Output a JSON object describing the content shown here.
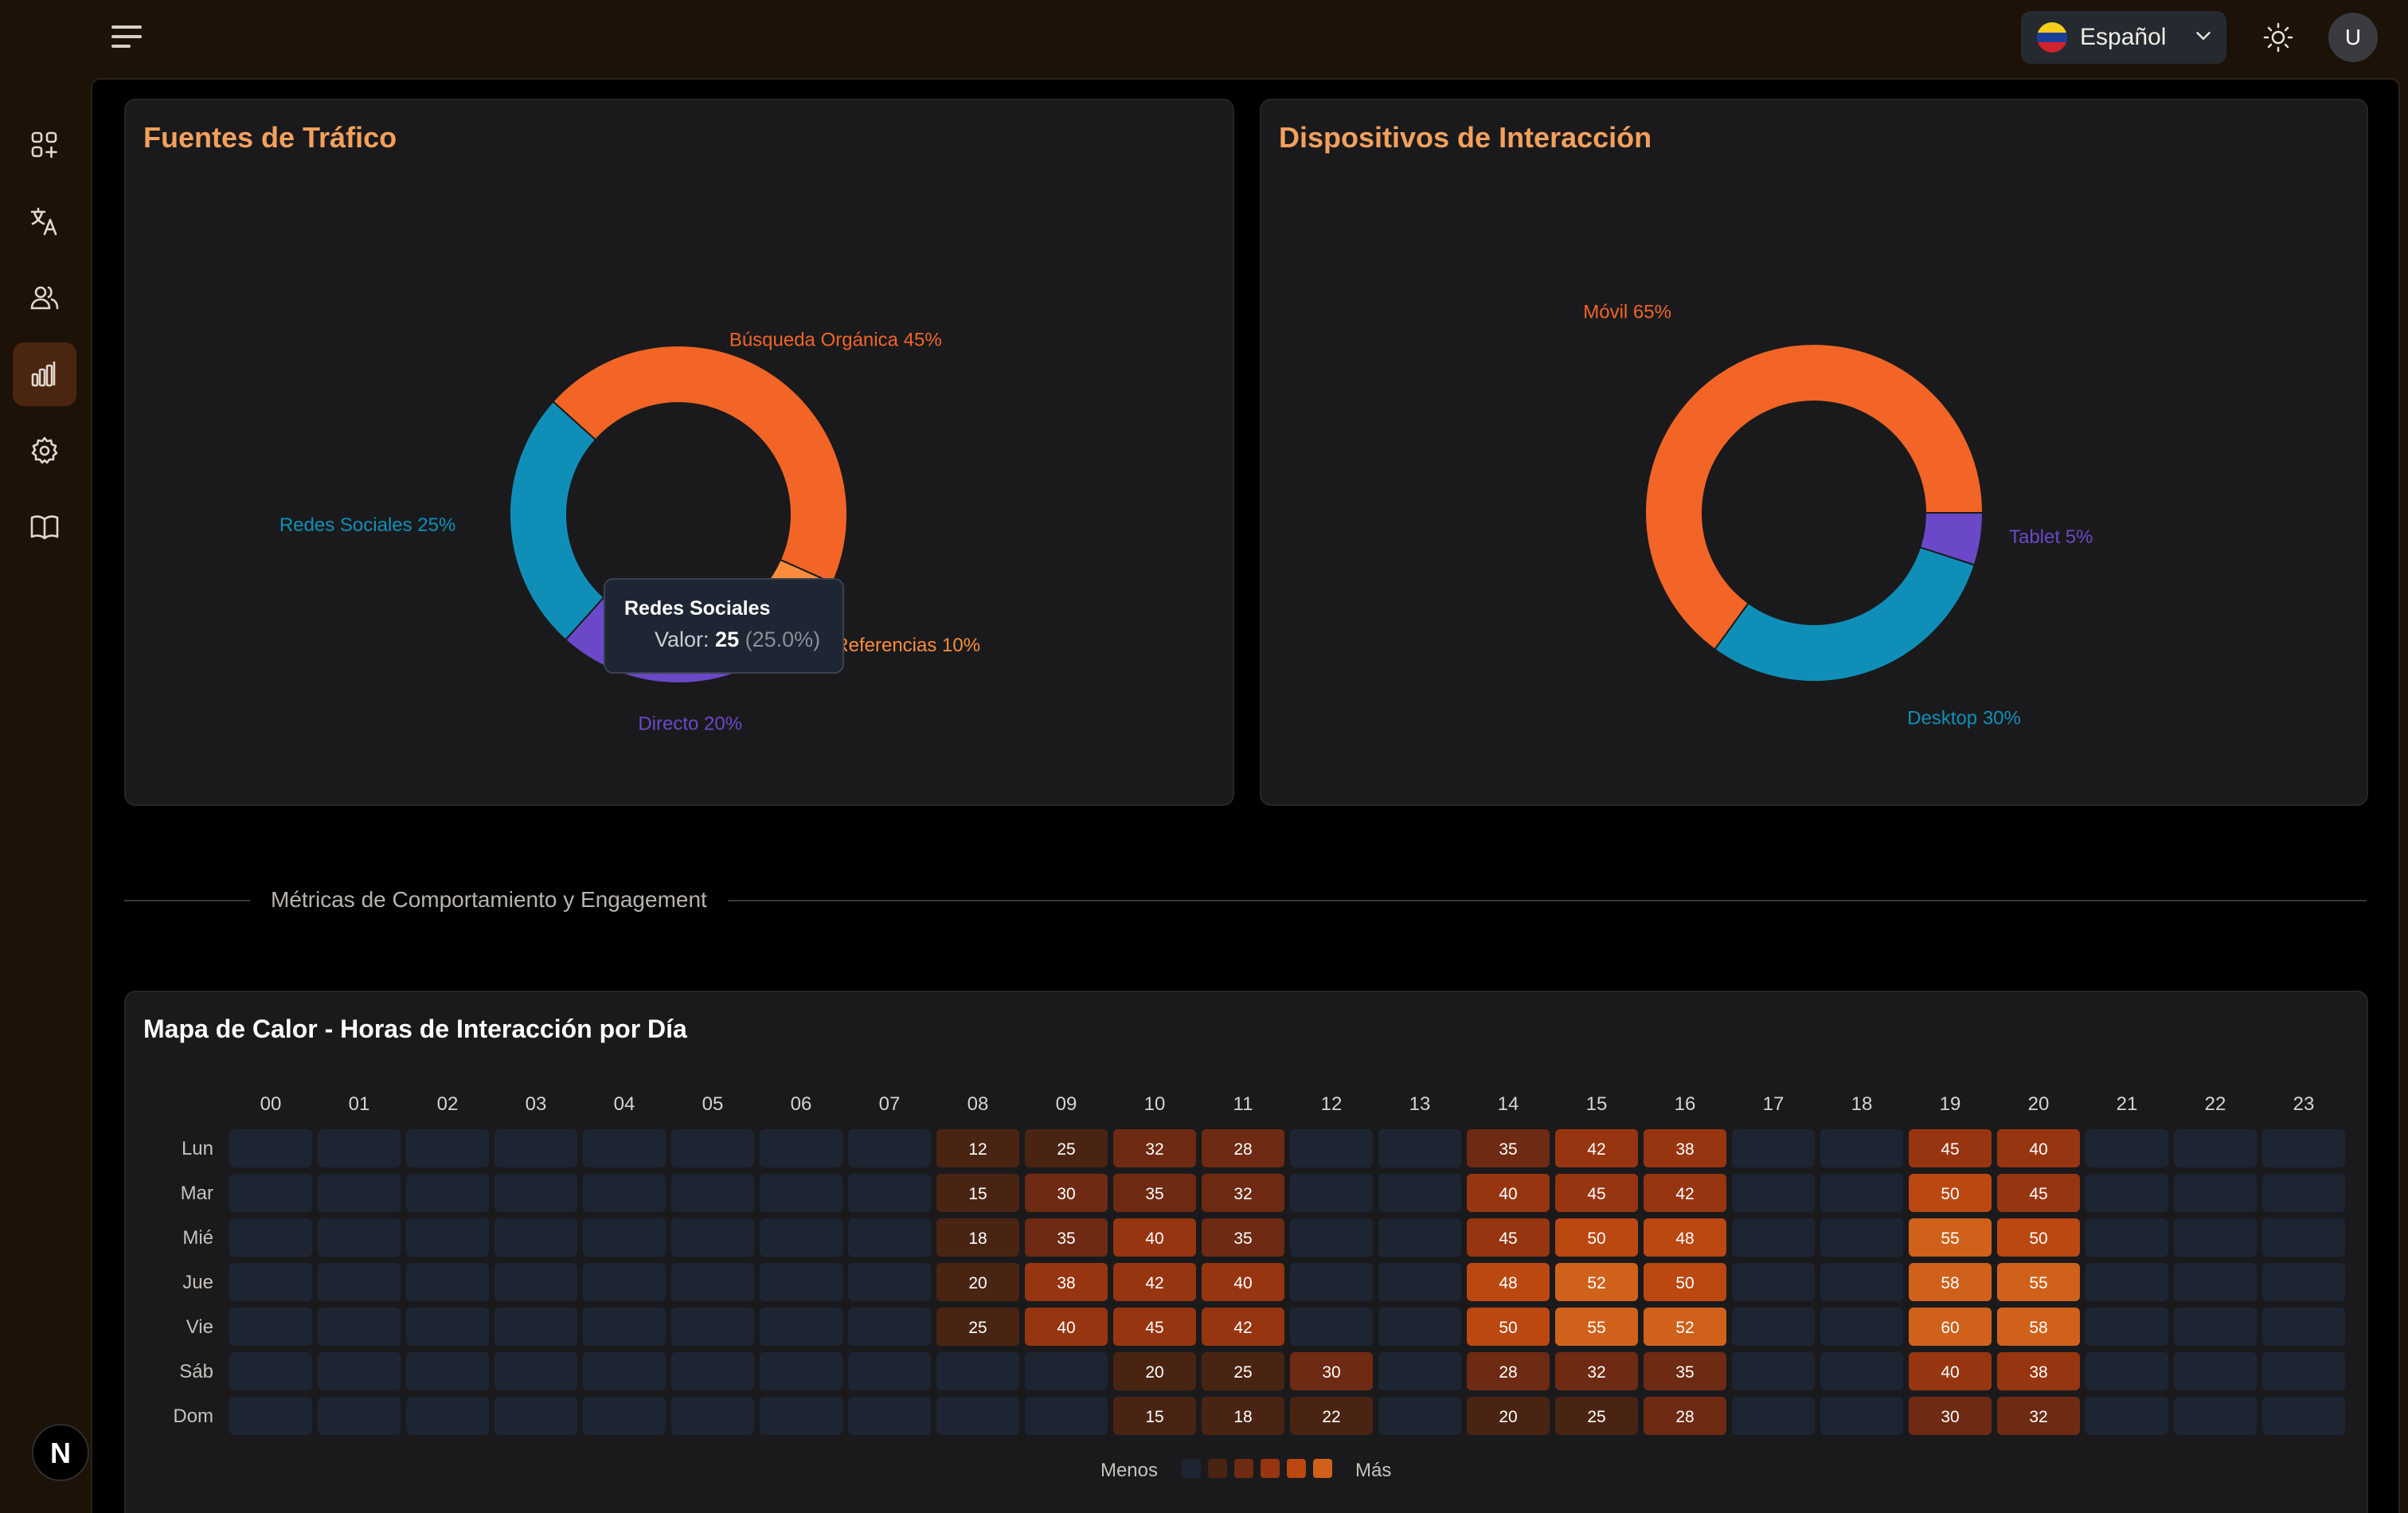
{
  "topbar": {
    "language_label": "Español",
    "avatar_initial": "U"
  },
  "sidebar": {
    "items": [
      {
        "icon": "dashboard-grid-icon"
      },
      {
        "icon": "translate-icon"
      },
      {
        "icon": "users-icon"
      },
      {
        "icon": "analytics-bar-chart-icon",
        "active": true
      },
      {
        "icon": "settings-gear-icon"
      },
      {
        "icon": "book-icon"
      }
    ],
    "logo_letter": "N"
  },
  "colors": {
    "orange": "#f26526",
    "light_orange": "#fb8c3c",
    "cyan": "#0f8fb8",
    "purple": "#6a48c8",
    "title_orange": "#f4a05c",
    "heat_empty": "#1d2533"
  },
  "divider": {
    "label": "Métricas de Comportamiento y Engagement"
  },
  "chart_data": [
    {
      "type": "pie",
      "donut": true,
      "title": "Fuentes de Tráfico",
      "slices": [
        {
          "label": "Búsqueda Orgánica",
          "value": 45,
          "percent_label": "45%",
          "color": "#f26526"
        },
        {
          "label": "Referencias",
          "value": 10,
          "percent_label": "10%",
          "color": "#fb8c3c"
        },
        {
          "label": "Directo",
          "value": 20,
          "percent_label": "20%",
          "color": "#6a48c8"
        },
        {
          "label": "Redes Sociales",
          "value": 25,
          "percent_label": "25%",
          "color": "#0f8fb8"
        }
      ],
      "tooltip": {
        "title": "Redes Sociales",
        "value_prefix": "Valor:",
        "value": "25",
        "percent": "(25.0%)"
      }
    },
    {
      "type": "pie",
      "donut": true,
      "title": "Dispositivos de Interacción",
      "slices": [
        {
          "label": "Tablet",
          "value": 5,
          "percent_label": "5%",
          "color": "#6a48c8"
        },
        {
          "label": "Desktop",
          "value": 30,
          "percent_label": "30%",
          "color": "#0f8fb8"
        },
        {
          "label": "Móvil",
          "value": 65,
          "percent_label": "65%",
          "color": "#f26526"
        }
      ]
    },
    {
      "type": "heatmap",
      "title": "Mapa de Calor - Horas de Interacción por Día",
      "x": [
        "00",
        "01",
        "02",
        "03",
        "04",
        "05",
        "06",
        "07",
        "08",
        "09",
        "10",
        "11",
        "12",
        "13",
        "14",
        "15",
        "16",
        "17",
        "18",
        "19",
        "20",
        "21",
        "22",
        "23"
      ],
      "y": [
        "Lun",
        "Mar",
        "Mié",
        "Jue",
        "Vie",
        "Sáb",
        "Dom"
      ],
      "values": [
        [
          0,
          0,
          0,
          0,
          0,
          0,
          0,
          0,
          12,
          25,
          32,
          28,
          0,
          0,
          35,
          42,
          38,
          0,
          0,
          45,
          40,
          0,
          0,
          0
        ],
        [
          0,
          0,
          0,
          0,
          0,
          0,
          0,
          0,
          15,
          30,
          35,
          32,
          0,
          0,
          40,
          45,
          42,
          0,
          0,
          50,
          45,
          0,
          0,
          0
        ],
        [
          0,
          0,
          0,
          0,
          0,
          0,
          0,
          0,
          18,
          35,
          40,
          35,
          0,
          0,
          45,
          50,
          48,
          0,
          0,
          55,
          50,
          0,
          0,
          0
        ],
        [
          0,
          0,
          0,
          0,
          0,
          0,
          0,
          0,
          20,
          38,
          42,
          40,
          0,
          0,
          48,
          52,
          50,
          0,
          0,
          58,
          55,
          0,
          0,
          0
        ],
        [
          0,
          0,
          0,
          0,
          0,
          0,
          0,
          0,
          25,
          40,
          45,
          42,
          0,
          0,
          50,
          55,
          52,
          0,
          0,
          60,
          58,
          0,
          0,
          0
        ],
        [
          0,
          0,
          0,
          0,
          0,
          0,
          0,
          0,
          0,
          0,
          20,
          25,
          30,
          0,
          28,
          32,
          35,
          0,
          0,
          40,
          38,
          0,
          0,
          0
        ],
        [
          0,
          0,
          0,
          0,
          0,
          0,
          0,
          0,
          0,
          0,
          15,
          18,
          22,
          0,
          20,
          25,
          28,
          0,
          0,
          30,
          32,
          0,
          0,
          0
        ]
      ],
      "legend": {
        "low": "Menos",
        "high": "Más"
      }
    }
  ]
}
